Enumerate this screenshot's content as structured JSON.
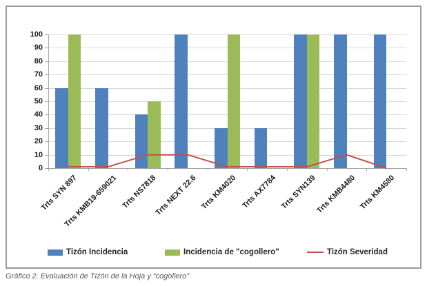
{
  "chart_data": {
    "type": "bar",
    "subtype": "bar-and-line-combo",
    "categories": [
      "Trts  SYN 897",
      "Trts  KMB19-659021",
      "Trts  NS7818",
      "Trts  NEXT 22.6",
      "Trts  KM4020",
      "Trts  AX7784",
      "Trts  SYN139",
      "Trts  KMB4480",
      "Trts  KM4580"
    ],
    "series": [
      {
        "name": "Tizón Incidencia",
        "type": "bar",
        "color": "#4F81BD",
        "values": [
          60,
          60,
          40,
          100,
          30,
          30,
          100,
          100,
          100
        ]
      },
      {
        "name": "Incidencia de \"cogollero\"",
        "type": "bar",
        "color": "#9BBB59",
        "values": [
          100,
          0,
          50,
          0,
          100,
          0,
          100,
          0,
          0
        ]
      },
      {
        "name": "Tizón Severidad",
        "type": "line",
        "color": "#C0504D",
        "values": [
          1,
          1,
          10,
          10,
          1,
          1,
          1,
          10,
          0
        ]
      }
    ],
    "title": "",
    "xlabel": "",
    "ylabel": "",
    "ylim": [
      0,
      100
    ],
    "ytick_step": 10,
    "grid": true,
    "legend_position": "bottom"
  },
  "colors": {
    "gridline": "#d6d6d6",
    "axis": "#a6a6a6",
    "frame_border": "#9b9b9b",
    "text": "#1a1a1a",
    "caption_text": "#595959"
  },
  "caption": "Gráfico 2. Evaluación de Tizón de la Hoja y “cogollero”"
}
